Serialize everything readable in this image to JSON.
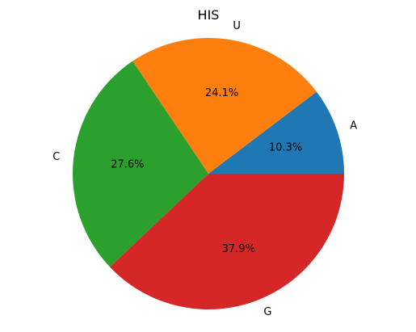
{
  "chart_data": {
    "type": "pie",
    "title": "HIS",
    "labels": [
      "A",
      "U",
      "C",
      "G"
    ],
    "values": [
      10.3,
      24.1,
      27.6,
      37.9
    ],
    "percent_labels": [
      "10.3%",
      "24.1%",
      "27.6%",
      "37.9%"
    ],
    "colors": [
      "#1f77b4",
      "#ff7f0e",
      "#2ca02c",
      "#d62728"
    ],
    "start_angle_deg": 0,
    "direction": "counterclockwise"
  }
}
